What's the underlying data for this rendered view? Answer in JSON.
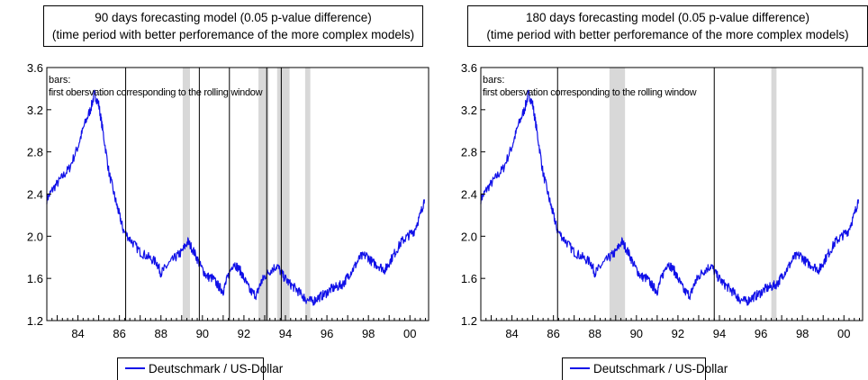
{
  "colors": {
    "series": "#1010e8",
    "shade": "#d8d8d8",
    "axis": "#000000",
    "text": "#000000"
  },
  "chart_data": [
    {
      "type": "line",
      "title": "90 days forecasting model (0.05 p-value difference)",
      "subtitle": "(time period with better perforemance of the more complex models)",
      "annotation_line1": "bars:",
      "annotation_line2": "first obersvation corresponding to the rolling window",
      "legend": [
        "Deutschmark / US-Dollar"
      ],
      "xlim": [
        1982.5,
        2000.9
      ],
      "ylim": [
        1.2,
        3.6
      ],
      "yticks": [
        1.2,
        1.6,
        2.0,
        2.4,
        2.8,
        3.2,
        3.6
      ],
      "ytick_labels": [
        "1.2",
        "1.6",
        "2.0",
        "2.4",
        "2.8",
        "3.2",
        "3.6"
      ],
      "xticks": [
        1984,
        1986,
        1988,
        1990,
        1992,
        1994,
        1996,
        1998,
        2000
      ],
      "xtick_labels": [
        "84",
        "86",
        "88",
        "90",
        "92",
        "94",
        "96",
        "98",
        "00"
      ],
      "series": [
        {
          "name": "Deutschmark / US-Dollar",
          "x": [
            1982.5,
            1982.8,
            1983.2,
            1983.6,
            1984.0,
            1984.3,
            1984.6,
            1984.8,
            1985.0,
            1985.2,
            1985.5,
            1985.8,
            1986.0,
            1986.2,
            1986.6,
            1987.0,
            1987.4,
            1987.8,
            1988.0,
            1988.3,
            1988.7,
            1989.0,
            1989.3,
            1989.6,
            1989.9,
            1990.2,
            1990.5,
            1990.8,
            1991.0,
            1991.2,
            1991.5,
            1991.8,
            1992.0,
            1992.3,
            1992.6,
            1992.8,
            1993.0,
            1993.3,
            1993.6,
            1993.9,
            1994.2,
            1994.5,
            1994.8,
            1995.0,
            1995.3,
            1995.6,
            1995.9,
            1996.2,
            1996.5,
            1996.8,
            1997.0,
            1997.3,
            1997.6,
            1997.9,
            1998.2,
            1998.5,
            1998.8,
            1999.0,
            1999.3,
            1999.6,
            1999.9,
            2000.2,
            2000.5,
            2000.7
          ],
          "y": [
            2.35,
            2.45,
            2.55,
            2.65,
            2.85,
            3.05,
            3.2,
            3.35,
            3.25,
            3.0,
            2.6,
            2.35,
            2.2,
            2.05,
            1.95,
            1.85,
            1.8,
            1.75,
            1.65,
            1.72,
            1.8,
            1.85,
            1.95,
            1.85,
            1.72,
            1.62,
            1.6,
            1.52,
            1.48,
            1.6,
            1.75,
            1.68,
            1.6,
            1.48,
            1.44,
            1.55,
            1.62,
            1.68,
            1.72,
            1.62,
            1.55,
            1.5,
            1.44,
            1.4,
            1.38,
            1.42,
            1.45,
            1.5,
            1.52,
            1.55,
            1.62,
            1.7,
            1.8,
            1.82,
            1.75,
            1.72,
            1.68,
            1.75,
            1.85,
            1.95,
            2.0,
            2.05,
            2.2,
            2.35
          ]
        }
      ],
      "shaded_ranges": [
        [
          1989.05,
          1989.4
        ],
        [
          1992.7,
          1993.2
        ],
        [
          1993.6,
          1994.2
        ],
        [
          1994.95,
          1995.2
        ]
      ],
      "vertical_lines": [
        1986.3,
        1989.85,
        1991.3,
        1993.1,
        1993.8
      ]
    },
    {
      "type": "line",
      "title": "180 days forecasting model (0.05 p-value difference)",
      "subtitle": "(time period with better perforemance of the more complex models)",
      "annotation_line1": "bars:",
      "annotation_line2": "first obersvation corresponding to the rolling window",
      "legend": [
        "Deutschmark / US-Dollar"
      ],
      "xlim": [
        1982.5,
        2000.9
      ],
      "ylim": [
        1.2,
        3.6
      ],
      "yticks": [
        1.2,
        1.6,
        2.0,
        2.4,
        2.8,
        3.2,
        3.6
      ],
      "ytick_labels": [
        "1.2",
        "1.6",
        "2.0",
        "2.4",
        "2.8",
        "3.2",
        "3.6"
      ],
      "xticks": [
        1984,
        1986,
        1988,
        1990,
        1992,
        1994,
        1996,
        1998,
        2000
      ],
      "xtick_labels": [
        "84",
        "86",
        "88",
        "90",
        "92",
        "94",
        "96",
        "98",
        "00"
      ],
      "series": [
        {
          "name": "Deutschmark / US-Dollar",
          "x": [
            1982.5,
            1982.8,
            1983.2,
            1983.6,
            1984.0,
            1984.3,
            1984.6,
            1984.8,
            1985.0,
            1985.2,
            1985.5,
            1985.8,
            1986.0,
            1986.2,
            1986.6,
            1987.0,
            1987.4,
            1987.8,
            1988.0,
            1988.3,
            1988.7,
            1989.0,
            1989.3,
            1989.6,
            1989.9,
            1990.2,
            1990.5,
            1990.8,
            1991.0,
            1991.2,
            1991.5,
            1991.8,
            1992.0,
            1992.3,
            1992.6,
            1992.8,
            1993.0,
            1993.3,
            1993.6,
            1993.9,
            1994.2,
            1994.5,
            1994.8,
            1995.0,
            1995.3,
            1995.6,
            1995.9,
            1996.2,
            1996.5,
            1996.8,
            1997.0,
            1997.3,
            1997.6,
            1997.9,
            1998.2,
            1998.5,
            1998.8,
            1999.0,
            1999.3,
            1999.6,
            1999.9,
            2000.2,
            2000.5,
            2000.7
          ],
          "y": [
            2.35,
            2.45,
            2.55,
            2.65,
            2.85,
            3.05,
            3.2,
            3.35,
            3.25,
            3.0,
            2.6,
            2.35,
            2.2,
            2.05,
            1.95,
            1.85,
            1.8,
            1.75,
            1.65,
            1.72,
            1.8,
            1.85,
            1.95,
            1.85,
            1.72,
            1.62,
            1.6,
            1.52,
            1.48,
            1.6,
            1.75,
            1.68,
            1.6,
            1.48,
            1.44,
            1.55,
            1.62,
            1.68,
            1.72,
            1.62,
            1.55,
            1.5,
            1.44,
            1.4,
            1.38,
            1.42,
            1.45,
            1.5,
            1.52,
            1.55,
            1.62,
            1.7,
            1.8,
            1.82,
            1.75,
            1.72,
            1.68,
            1.75,
            1.85,
            1.95,
            2.0,
            2.05,
            2.2,
            2.35
          ]
        }
      ],
      "shaded_ranges": [
        [
          1988.7,
          1989.45
        ],
        [
          1996.5,
          1996.75
        ]
      ],
      "vertical_lines": [
        1986.2,
        1993.75
      ]
    }
  ]
}
